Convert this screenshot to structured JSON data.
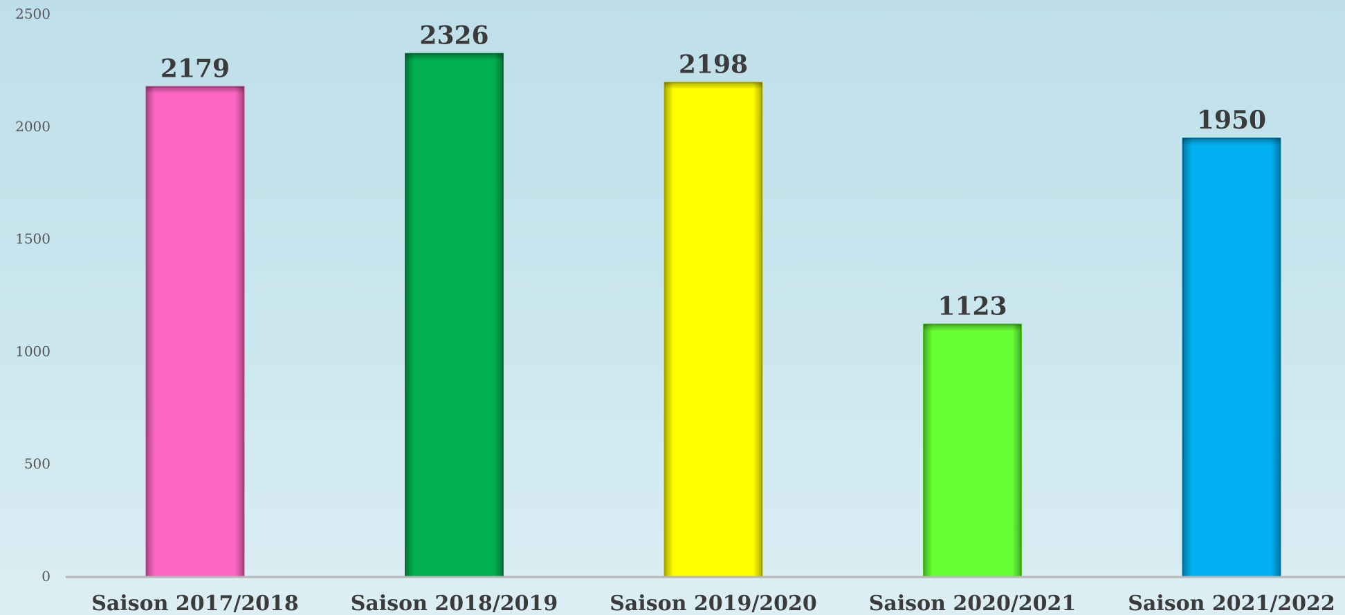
{
  "chart_data": {
    "type": "bar",
    "title": "",
    "xlabel": "",
    "ylabel": "",
    "categories": [
      "Saison 2017/2018",
      "Saison 2018/2019",
      "Saison 2019/2020",
      "Saison 2020/2021",
      "Saison 2021/2022"
    ],
    "values": [
      2179,
      2326,
      2198,
      1123,
      1950
    ],
    "colors": [
      "#ff66c4",
      "#00b050",
      "#ffff00",
      "#66ff33",
      "#00b0f0"
    ],
    "yticks": [
      0,
      500,
      1000,
      1500,
      2000,
      2500
    ],
    "ylim": [
      0,
      2500
    ],
    "grid": false,
    "legend": "none",
    "data_labels": true
  }
}
